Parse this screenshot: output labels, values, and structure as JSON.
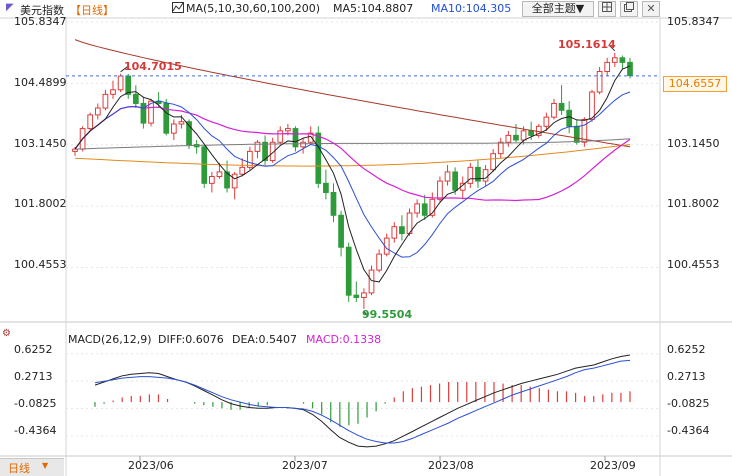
{
  "header": {
    "title": "美元指数",
    "period_tag": "【日线】",
    "ma_label": "MA(5,10,30,60,100,200)",
    "ma5_label": "MA5:104.8807",
    "ma10_label": "MA10:104.305",
    "theme_button": "全部主题▼",
    "icons": [
      "grid-icon",
      "copy-icon",
      "close-icon"
    ]
  },
  "price_axis": {
    "ticks": [
      "105.8347",
      "104.4899",
      "103.1450",
      "101.8002",
      "100.4553"
    ],
    "current_price": "104.6557"
  },
  "annotations": {
    "high_left": "104.7015",
    "high_right": "105.1614",
    "low": "99.5504"
  },
  "macd": {
    "label": "MACD(26,12,9)",
    "diff": "DIFF:0.6076",
    "dea": "DEA:0.5407",
    "macd": "MACD:0.1338",
    "ticks": [
      "0.6252",
      "0.2713",
      "-0.0825",
      "-0.4364"
    ]
  },
  "x_axis": {
    "labels": [
      "2023/06",
      "2023/07",
      "2023/08",
      "2023/09"
    ]
  },
  "footer": {
    "period_button": "日线"
  },
  "colors": {
    "up": "#e03c3c",
    "down": "#2e9b3a",
    "ma_long": "#a83a2a",
    "ma_magenta": "#d61fd6",
    "ma_orange": "#e28b1b",
    "ma_gray": "#7a7a7a",
    "diff_line": "#222222",
    "dea_line": "#2c4fd6"
  },
  "chart_data": {
    "type": "candlestick",
    "candles": [
      [
        103.0,
        103.1,
        102.9,
        103.05
      ],
      [
        103.05,
        103.55,
        103.0,
        103.5
      ],
      [
        103.5,
        103.85,
        103.45,
        103.8
      ],
      [
        103.8,
        104.05,
        103.7,
        103.95
      ],
      [
        103.95,
        104.35,
        103.9,
        104.25
      ],
      [
        104.25,
        104.55,
        104.15,
        104.35
      ],
      [
        104.35,
        104.7,
        104.3,
        104.65
      ],
      [
        104.65,
        104.7,
        104.15,
        104.25
      ],
      [
        104.25,
        104.45,
        103.95,
        104.05
      ],
      [
        104.05,
        104.2,
        103.5,
        103.62
      ],
      [
        103.62,
        104.15,
        103.55,
        104.1
      ],
      [
        104.1,
        104.3,
        103.95,
        104.05
      ],
      [
        104.05,
        104.15,
        103.35,
        103.4
      ],
      [
        103.4,
        103.7,
        103.25,
        103.6
      ],
      [
        103.6,
        103.8,
        103.5,
        103.65
      ],
      [
        103.65,
        103.7,
        103.05,
        103.15
      ],
      [
        103.15,
        103.25,
        102.95,
        103.1
      ],
      [
        103.1,
        103.15,
        102.2,
        102.3
      ],
      [
        102.3,
        102.55,
        102.1,
        102.45
      ],
      [
        102.45,
        102.75,
        102.4,
        102.55
      ],
      [
        102.55,
        102.8,
        102.1,
        102.2
      ],
      [
        102.2,
        102.55,
        101.95,
        102.5
      ],
      [
        102.5,
        102.85,
        102.45,
        102.65
      ],
      [
        102.65,
        103.1,
        102.6,
        103.0
      ],
      [
        103.0,
        103.25,
        102.85,
        103.2
      ],
      [
        103.2,
        103.35,
        102.7,
        102.8
      ],
      [
        102.8,
        103.3,
        102.75,
        103.2
      ],
      [
        103.2,
        103.55,
        103.15,
        103.45
      ],
      [
        103.45,
        103.6,
        103.35,
        103.5
      ],
      [
        103.5,
        103.55,
        103.0,
        103.1
      ],
      [
        103.1,
        103.3,
        102.95,
        103.2
      ],
      [
        103.2,
        103.55,
        103.15,
        103.4
      ],
      [
        103.4,
        103.55,
        102.2,
        102.3
      ],
      [
        102.3,
        102.6,
        101.95,
        102.1
      ],
      [
        102.1,
        102.3,
        101.45,
        101.6
      ],
      [
        101.6,
        101.7,
        100.7,
        100.9
      ],
      [
        100.9,
        101.0,
        99.7,
        99.85
      ],
      [
        99.85,
        100.15,
        99.7,
        99.8
      ],
      [
        99.8,
        100.0,
        99.55,
        99.9
      ],
      [
        99.9,
        100.5,
        99.85,
        100.4
      ],
      [
        100.4,
        100.85,
        100.35,
        100.75
      ],
      [
        100.75,
        101.2,
        100.7,
        101.1
      ],
      [
        101.1,
        101.45,
        101.0,
        101.35
      ],
      [
        101.35,
        101.6,
        101.05,
        101.2
      ],
      [
        101.2,
        101.75,
        101.15,
        101.65
      ],
      [
        101.65,
        101.95,
        101.55,
        101.85
      ],
      [
        101.85,
        102.05,
        101.5,
        101.6
      ],
      [
        101.6,
        102.1,
        101.55,
        101.95
      ],
      [
        101.95,
        102.45,
        101.9,
        102.35
      ],
      [
        102.35,
        102.7,
        102.25,
        102.55
      ],
      [
        102.55,
        102.65,
        102.05,
        102.15
      ],
      [
        102.15,
        102.45,
        101.95,
        102.3
      ],
      [
        102.3,
        102.75,
        102.2,
        102.65
      ],
      [
        102.65,
        102.8,
        102.2,
        102.35
      ],
      [
        102.35,
        102.7,
        102.25,
        102.6
      ],
      [
        102.6,
        103.05,
        102.55,
        102.95
      ],
      [
        102.95,
        103.3,
        102.85,
        103.2
      ],
      [
        103.2,
        103.45,
        103.1,
        103.35
      ],
      [
        103.35,
        103.6,
        103.2,
        103.25
      ],
      [
        103.25,
        103.55,
        103.15,
        103.45
      ],
      [
        103.45,
        103.65,
        103.25,
        103.35
      ],
      [
        103.35,
        103.6,
        103.3,
        103.55
      ],
      [
        103.55,
        103.85,
        103.45,
        103.75
      ],
      [
        103.75,
        104.15,
        103.7,
        104.05
      ],
      [
        104.05,
        104.45,
        103.8,
        103.9
      ],
      [
        103.9,
        104.1,
        103.4,
        103.55
      ],
      [
        103.55,
        103.7,
        103.15,
        103.2
      ],
      [
        103.2,
        103.75,
        103.1,
        103.7
      ],
      [
        103.7,
        104.35,
        103.65,
        104.3
      ],
      [
        104.3,
        104.85,
        104.25,
        104.75
      ],
      [
        104.75,
        105.05,
        104.65,
        104.95
      ],
      [
        104.95,
        105.16,
        104.85,
        105.05
      ],
      [
        105.05,
        105.1,
        104.8,
        104.95
      ],
      [
        104.95,
        105.05,
        104.6,
        104.66
      ]
    ],
    "macd": {
      "diff": [
        0.22,
        0.26,
        0.3,
        0.34,
        0.36,
        0.37,
        0.38,
        0.37,
        0.33,
        0.29,
        0.26,
        0.21,
        0.15,
        0.09,
        0.03,
        -0.02,
        -0.05,
        -0.07,
        -0.08,
        -0.08,
        -0.07,
        -0.07,
        -0.08,
        -0.1,
        -0.16,
        -0.25,
        -0.36,
        -0.46,
        -0.52,
        -0.57,
        -0.58,
        -0.57,
        -0.54,
        -0.5,
        -0.44,
        -0.38,
        -0.32,
        -0.26,
        -0.2,
        -0.14,
        -0.08,
        -0.03,
        0.02,
        0.07,
        0.12,
        0.16,
        0.2,
        0.24,
        0.27,
        0.3,
        0.33,
        0.36,
        0.4,
        0.44,
        0.46,
        0.48,
        0.52,
        0.56,
        0.59,
        0.61
      ],
      "dea": [
        0.25,
        0.27,
        0.29,
        0.31,
        0.32,
        0.33,
        0.33,
        0.32,
        0.31,
        0.29,
        0.26,
        0.22,
        0.17,
        0.12,
        0.07,
        0.03,
        0.0,
        -0.03,
        -0.05,
        -0.06,
        -0.07,
        -0.07,
        -0.08,
        -0.09,
        -0.12,
        -0.17,
        -0.23,
        -0.3,
        -0.37,
        -0.43,
        -0.48,
        -0.51,
        -0.53,
        -0.53,
        -0.51,
        -0.47,
        -0.42,
        -0.37,
        -0.32,
        -0.27,
        -0.21,
        -0.16,
        -0.11,
        -0.06,
        -0.01,
        0.04,
        0.09,
        0.13,
        0.17,
        0.21,
        0.25,
        0.29,
        0.33,
        0.38,
        0.42,
        0.44,
        0.47,
        0.5,
        0.53,
        0.54
      ]
    }
  }
}
